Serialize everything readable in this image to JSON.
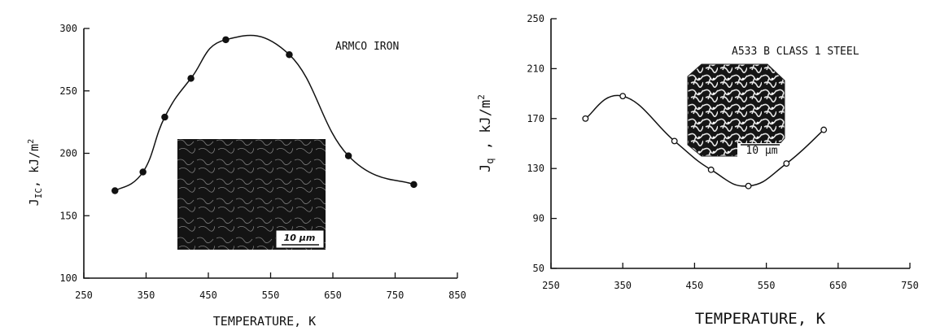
{
  "chart_data": [
    {
      "type": "line",
      "annotation": "ARMCO IRON",
      "xlabel": "TEMPERATURE, K",
      "ylabel": "J_IC, kJ/m²",
      "ylabel_parts": {
        "main": "J",
        "sub": "IC",
        "rest": ", kJ/m",
        "sup": "2"
      },
      "xlim": [
        250,
        850
      ],
      "ylim": [
        100,
        300
      ],
      "xticks": [
        "250",
        "350",
        "450",
        "550",
        "650",
        "750",
        "850"
      ],
      "yticks": [
        "100",
        "150",
        "200",
        "250",
        "300"
      ],
      "series": [
        {
          "marker": "filled-circle",
          "x": [
            300,
            345,
            380,
            422,
            478,
            580,
            675,
            780
          ],
          "y": [
            170,
            185,
            229,
            260,
            291,
            279,
            198,
            175
          ]
        }
      ],
      "inset": {
        "scale_bar": "10 µm"
      }
    },
    {
      "type": "line",
      "annotation": "A533 B CLASS 1 STEEL",
      "xlabel": "TEMPERATURE, K",
      "ylabel": "J_q , kJ/m²",
      "ylabel_parts": {
        "main": "J",
        "sub": "q",
        "rest": " , kJ/m",
        "sup": "2"
      },
      "xlim": [
        250,
        750
      ],
      "ylim": [
        50,
        250
      ],
      "xticks": [
        "250",
        "350",
        "450",
        "550",
        "650",
        "750"
      ],
      "yticks": [
        "50",
        "90",
        "130",
        "170",
        "210",
        "250"
      ],
      "series": [
        {
          "marker": "open-circle",
          "x": [
            298,
            350,
            422,
            473,
            525,
            578,
            630
          ],
          "y": [
            170,
            188,
            152,
            129,
            116,
            134,
            161
          ]
        }
      ],
      "inset": {
        "scale_bar": "10 µm"
      }
    }
  ]
}
